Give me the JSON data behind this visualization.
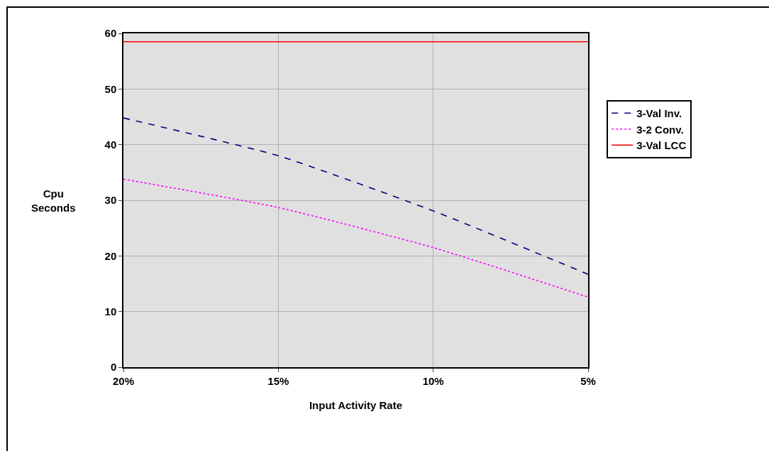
{
  "chart_data": {
    "type": "line",
    "xlabel": "Input Activity Rate",
    "ylabel": "Cpu Seconds",
    "categories": [
      "20%",
      "15%",
      "10%",
      "5%"
    ],
    "series": [
      {
        "name": "3-Val Inv.",
        "color": "#000080",
        "line_style": "dashed",
        "values": [
          44.8,
          38.0,
          28.1,
          16.7
        ]
      },
      {
        "name": "3-2 Conv.",
        "color": "#ff00ff",
        "line_style": "dotted",
        "values": [
          33.8,
          28.7,
          21.5,
          12.6
        ]
      },
      {
        "name": "3-Val LCC",
        "color": "#ff0000",
        "line_style": "solid",
        "values": [
          58.5,
          58.5,
          58.5,
          58.5
        ]
      }
    ],
    "ylim": [
      0,
      60
    ],
    "yticks": [
      0,
      10,
      20,
      30,
      40,
      50,
      60
    ],
    "grid": true,
    "legend": "right",
    "marker": "none"
  }
}
